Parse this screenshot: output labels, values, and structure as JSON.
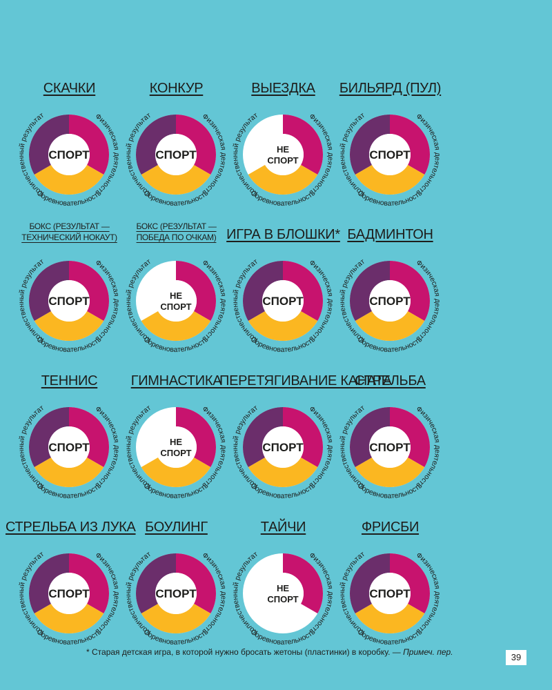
{
  "colors": {
    "background": "#63c6d5",
    "physical": "#c7136e",
    "competition": "#fbb721",
    "quantitative": "#6b2e6b",
    "center": "#ffffff",
    "text": "#1d1d1b"
  },
  "segment_labels": {
    "physical": "Физическая деятельность",
    "competition": "Соревновательность",
    "quantitative": "Количественный результат"
  },
  "center_labels": {
    "sport": "СПОРТ",
    "not_sport_line1": "НЕ",
    "not_sport_line2": "СПОРТ"
  },
  "activities": [
    {
      "title": [
        "СКАЧКИ"
      ],
      "physical": true,
      "competition": true,
      "quantitative": true
    },
    {
      "title": [
        "КОНКУР"
      ],
      "physical": true,
      "competition": true,
      "quantitative": true
    },
    {
      "title": [
        "ВЫЕЗДКА"
      ],
      "physical": true,
      "competition": true,
      "quantitative": false
    },
    {
      "title": [
        "БИЛЬЯРД (ПУЛ)"
      ],
      "physical": true,
      "competition": true,
      "quantitative": true
    },
    {
      "title": [
        "БОКС (РЕЗУЛЬТАТ —",
        "ТЕХНИЧЕСКИЙ НОКАУТ)"
      ],
      "physical": true,
      "competition": true,
      "quantitative": true
    },
    {
      "title": [
        "БОКС (РЕЗУЛЬТАТ —",
        "ПОБЕДА ПО ОЧКАМ)"
      ],
      "physical": true,
      "competition": true,
      "quantitative": false
    },
    {
      "title": [
        "ИГРА В БЛОШКИ*"
      ],
      "physical": true,
      "competition": true,
      "quantitative": true
    },
    {
      "title": [
        "БАДМИНТОН"
      ],
      "physical": true,
      "competition": true,
      "quantitative": true
    },
    {
      "title": [
        "ТЕННИС"
      ],
      "physical": true,
      "competition": true,
      "quantitative": true
    },
    {
      "title": [
        "ГИМНАСТИКА"
      ],
      "physical": true,
      "competition": true,
      "quantitative": false
    },
    {
      "title": [
        "ПЕРЕТЯГИВАНИЕ КАНАТА"
      ],
      "physical": true,
      "competition": true,
      "quantitative": true
    },
    {
      "title": [
        "СТРЕЛЬБА"
      ],
      "physical": true,
      "competition": true,
      "quantitative": true
    },
    {
      "title": [
        "СТРЕЛЬБА ИЗ ЛУКА"
      ],
      "physical": true,
      "competition": true,
      "quantitative": true
    },
    {
      "title": [
        "БОУЛИНГ"
      ],
      "physical": true,
      "competition": true,
      "quantitative": true
    },
    {
      "title": [
        "ТАЙЧИ"
      ],
      "physical": true,
      "competition": false,
      "quantitative": false
    },
    {
      "title": [
        "ФРИСБИ"
      ],
      "physical": true,
      "competition": true,
      "quantitative": true
    }
  ],
  "footnote": {
    "text": "* Старая детская игра, в которой нужно бросать жетоны (пластинки) в коробку. —",
    "note": "Примеч. пер."
  },
  "page_number": "39"
}
